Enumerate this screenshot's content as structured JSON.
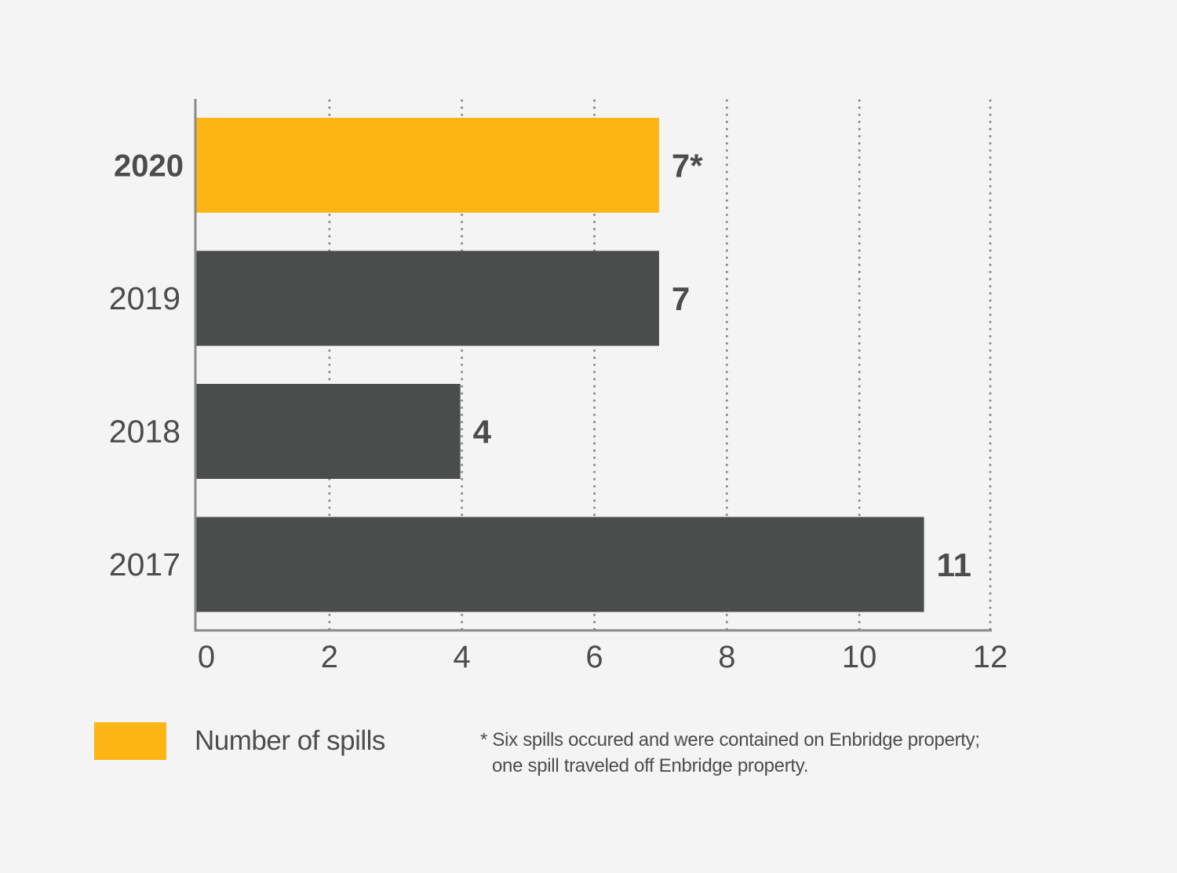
{
  "chart_data": {
    "type": "bar",
    "orientation": "horizontal",
    "categories": [
      "2020",
      "2019",
      "2018",
      "2017"
    ],
    "values": [
      7,
      7,
      4,
      11
    ],
    "value_labels": [
      "7*",
      "7",
      "4",
      "11"
    ],
    "highlight_category": "2020",
    "xlim": [
      0,
      12
    ],
    "x_ticks": [
      "0",
      "2",
      "4",
      "6",
      "8",
      "10",
      "12"
    ],
    "grid": "vertical-dotted",
    "legend": [
      {
        "name": "Number of spills",
        "color": "#fdb515"
      }
    ],
    "legend_position": "bottom-left"
  },
  "colors": {
    "highlight": "#fdb515",
    "bar": "#4b4d4c",
    "axis": "#8a8a8a",
    "grid": "#8a8a8a",
    "text": "#4b4d4c",
    "background": "#f4f4f4"
  },
  "footnote": {
    "line1": "* Six spills occured and were contained on Enbridge property;",
    "line2": "one spill traveled off Enbridge property."
  }
}
